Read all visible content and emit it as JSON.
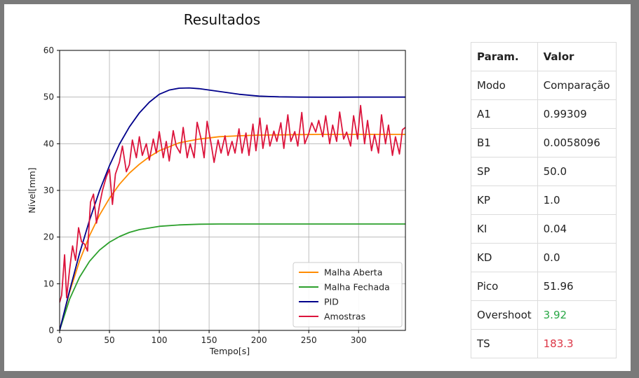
{
  "colors": {
    "malha_aberta": "#ff8c00",
    "malha_fechada": "#2ca02c",
    "pid": "#00008b",
    "amostras": "#dc143c",
    "overshoot": "#28a745",
    "ts": "#dc3545"
  },
  "chart_data": {
    "type": "line",
    "title": "Resultados",
    "xlabel": "Tempo[s]",
    "ylabel": "Nível[mm]",
    "xlim": [
      0,
      347
    ],
    "ylim": [
      0,
      60
    ],
    "xticks": [
      0,
      50,
      100,
      150,
      200,
      250,
      300
    ],
    "yticks": [
      0,
      10,
      20,
      30,
      40,
      50,
      60
    ],
    "grid": true,
    "legend_position": "lower-right",
    "series": [
      {
        "name": "Malha Aberta",
        "color": "#ff8c00",
        "x": [
          0,
          10,
          20,
          30,
          40,
          50,
          60,
          70,
          80,
          90,
          100,
          120,
          140,
          160,
          180,
          200,
          220,
          240,
          260,
          280,
          300,
          320,
          347
        ],
        "y": [
          0,
          8.2,
          14.9,
          20.3,
          24.7,
          28.3,
          31.3,
          33.7,
          35.6,
          37.2,
          38.5,
          40.2,
          41.0,
          41.5,
          41.7,
          41.85,
          41.9,
          41.95,
          42.0,
          42.0,
          42.0,
          42.0,
          42.0
        ]
      },
      {
        "name": "Malha Fechada",
        "color": "#2ca02c",
        "x": [
          0,
          10,
          20,
          30,
          40,
          50,
          60,
          70,
          80,
          100,
          120,
          140,
          160,
          200,
          250,
          300,
          347
        ],
        "y": [
          0,
          6.7,
          11.4,
          14.8,
          17.2,
          18.9,
          20.1,
          21.0,
          21.6,
          22.3,
          22.6,
          22.75,
          22.8,
          22.8,
          22.8,
          22.8,
          22.8
        ]
      },
      {
        "name": "PID",
        "color": "#00008b",
        "x": [
          0,
          10,
          20,
          30,
          40,
          50,
          60,
          70,
          80,
          90,
          100,
          110,
          120,
          130,
          140,
          150,
          160,
          180,
          200,
          220,
          240,
          260,
          280,
          300,
          320,
          347
        ],
        "y": [
          0,
          8.5,
          16.5,
          23.6,
          29.9,
          35.3,
          39.9,
          43.6,
          46.6,
          48.9,
          50.6,
          51.5,
          51.9,
          51.96,
          51.8,
          51.5,
          51.2,
          50.6,
          50.2,
          50.05,
          50.0,
          49.98,
          49.98,
          50.0,
          50.0,
          50.0
        ]
      },
      {
        "name": "Amostras",
        "color": "#dc143c",
        "x": [
          0,
          2,
          5,
          7,
          10,
          13,
          16,
          19,
          22,
          25,
          28,
          31,
          34,
          37,
          40,
          43,
          47,
          50,
          53,
          56,
          60,
          63,
          67,
          70,
          73,
          77,
          80,
          83,
          87,
          90,
          94,
          97,
          100,
          104,
          107,
          110,
          114,
          117,
          121,
          124,
          128,
          131,
          135,
          138,
          142,
          145,
          148,
          152,
          155,
          159,
          162,
          166,
          169,
          173,
          176,
          180,
          183,
          187,
          190,
          194,
          197,
          201,
          204,
          208,
          211,
          215,
          218,
          222,
          225,
          229,
          232,
          236,
          239,
          243,
          246,
          250,
          253,
          257,
          260,
          264,
          267,
          271,
          274,
          278,
          281,
          285,
          288,
          292,
          295,
          299,
          302,
          306,
          309,
          313,
          316,
          320,
          323,
          327,
          330,
          334,
          337,
          341,
          344,
          347
        ],
        "y": [
          6,
          7.5,
          16.2,
          7,
          13,
          18.1,
          15,
          22,
          19,
          18.5,
          17,
          27.5,
          29.2,
          23,
          26.8,
          30,
          33,
          34.5,
          27,
          33.5,
          36,
          39.5,
          34,
          35.5,
          40.8,
          37,
          41.5,
          37.5,
          40,
          36.5,
          41,
          38,
          42.6,
          37,
          40.5,
          36.3,
          42.8,
          39.5,
          38,
          43.5,
          37,
          40,
          37,
          44.6,
          41,
          37,
          44.8,
          40,
          36,
          40.8,
          38,
          41.7,
          37.5,
          40.5,
          38,
          43.2,
          38,
          42.3,
          37.5,
          44.2,
          38.5,
          45.5,
          39,
          44,
          39.5,
          42.7,
          40.5,
          44.5,
          39,
          46.2,
          40.5,
          42.6,
          39.5,
          46.7,
          40,
          42.2,
          44.5,
          42.5,
          45,
          41.5,
          46,
          40,
          44,
          40.5,
          46.8,
          41,
          42.5,
          39.5,
          46,
          41,
          48.2,
          40,
          45,
          38.5,
          42,
          38,
          46.2,
          40,
          44,
          37.5,
          41.5,
          37.8,
          43,
          43.5
        ]
      }
    ]
  },
  "table": {
    "headers": [
      "Param.",
      "Valor"
    ],
    "rows": [
      [
        "Modo",
        "Comparação"
      ],
      [
        "A1",
        "0.99309"
      ],
      [
        "B1",
        "0.0058096"
      ],
      [
        "SP",
        "50.0"
      ],
      [
        "KP",
        "1.0"
      ],
      [
        "KI",
        "0.04"
      ],
      [
        "KD",
        "0.0"
      ],
      [
        "Pico",
        "51.96"
      ],
      [
        "Overshoot",
        "3.92"
      ],
      [
        "TS",
        "183.3"
      ]
    ]
  }
}
